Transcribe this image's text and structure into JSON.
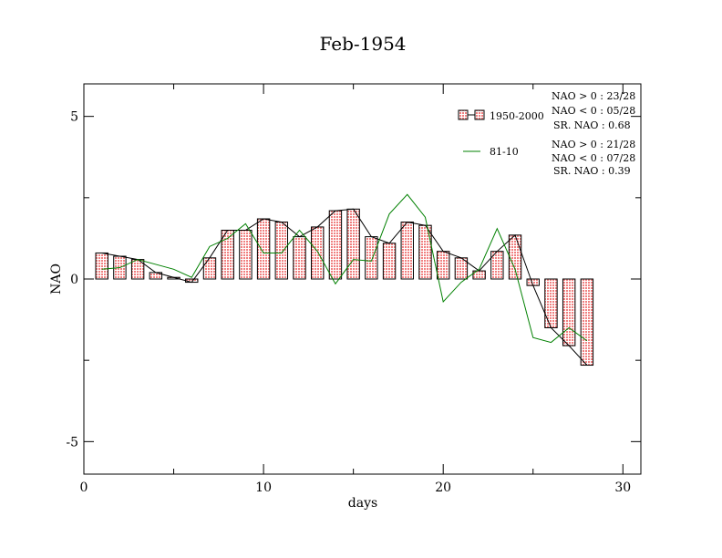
{
  "chart_data": {
    "type": "bar",
    "title": "Feb-1954",
    "xlabel": "days",
    "ylabel": "NAO",
    "xlim": [
      0,
      31
    ],
    "ylim": [
      -6,
      6
    ],
    "x_ticks": [
      0,
      10,
      20,
      30
    ],
    "y_ticks": [
      -5,
      0,
      5
    ],
    "x_tick_labels": [
      "0",
      "10",
      "20",
      "30"
    ],
    "y_tick_labels": [
      "-5",
      "0",
      "5"
    ],
    "grid": false,
    "legend_position": "top-right",
    "series": [
      {
        "name": "1950-2000",
        "kind": "bar",
        "color": "#f08080",
        "x": [
          1,
          2,
          3,
          4,
          5,
          6,
          7,
          8,
          9,
          10,
          11,
          12,
          13,
          14,
          15,
          16,
          17,
          18,
          19,
          20,
          21,
          22,
          23,
          24,
          25,
          26,
          27,
          28
        ],
        "values": [
          0.8,
          0.7,
          0.6,
          0.2,
          0.05,
          -0.1,
          0.65,
          1.5,
          1.5,
          1.85,
          1.75,
          1.3,
          1.6,
          2.1,
          2.15,
          1.3,
          1.1,
          1.75,
          1.65,
          0.85,
          0.65,
          0.25,
          0.85,
          1.35,
          -0.2,
          -1.5,
          -2.05,
          -2.65
        ]
      },
      {
        "name": "81-10",
        "kind": "line",
        "color": "#008000",
        "x": [
          1,
          2,
          3,
          4,
          5,
          6,
          7,
          8,
          9,
          10,
          11,
          12,
          13,
          14,
          15,
          16,
          17,
          18,
          19,
          20,
          21,
          22,
          23,
          24,
          25,
          26,
          27,
          28
        ],
        "values": [
          0.3,
          0.35,
          0.6,
          0.45,
          0.3,
          0.05,
          1.0,
          1.25,
          1.7,
          0.8,
          0.8,
          1.5,
          0.85,
          -0.15,
          0.6,
          0.55,
          2.0,
          2.6,
          1.9,
          -0.7,
          -0.1,
          0.3,
          1.55,
          0.3,
          -1.8,
          -1.95,
          -1.5,
          -1.9
        ]
      }
    ],
    "annotations": {
      "group1": [
        "NAO > 0 : 23/28",
        "NAO < 0 : 05/28",
        "SR. NAO :  0.68"
      ],
      "group2": [
        "NAO > 0 : 21/28",
        "NAO < 0 : 07/28",
        "SR. NAO :  0.39"
      ]
    }
  }
}
